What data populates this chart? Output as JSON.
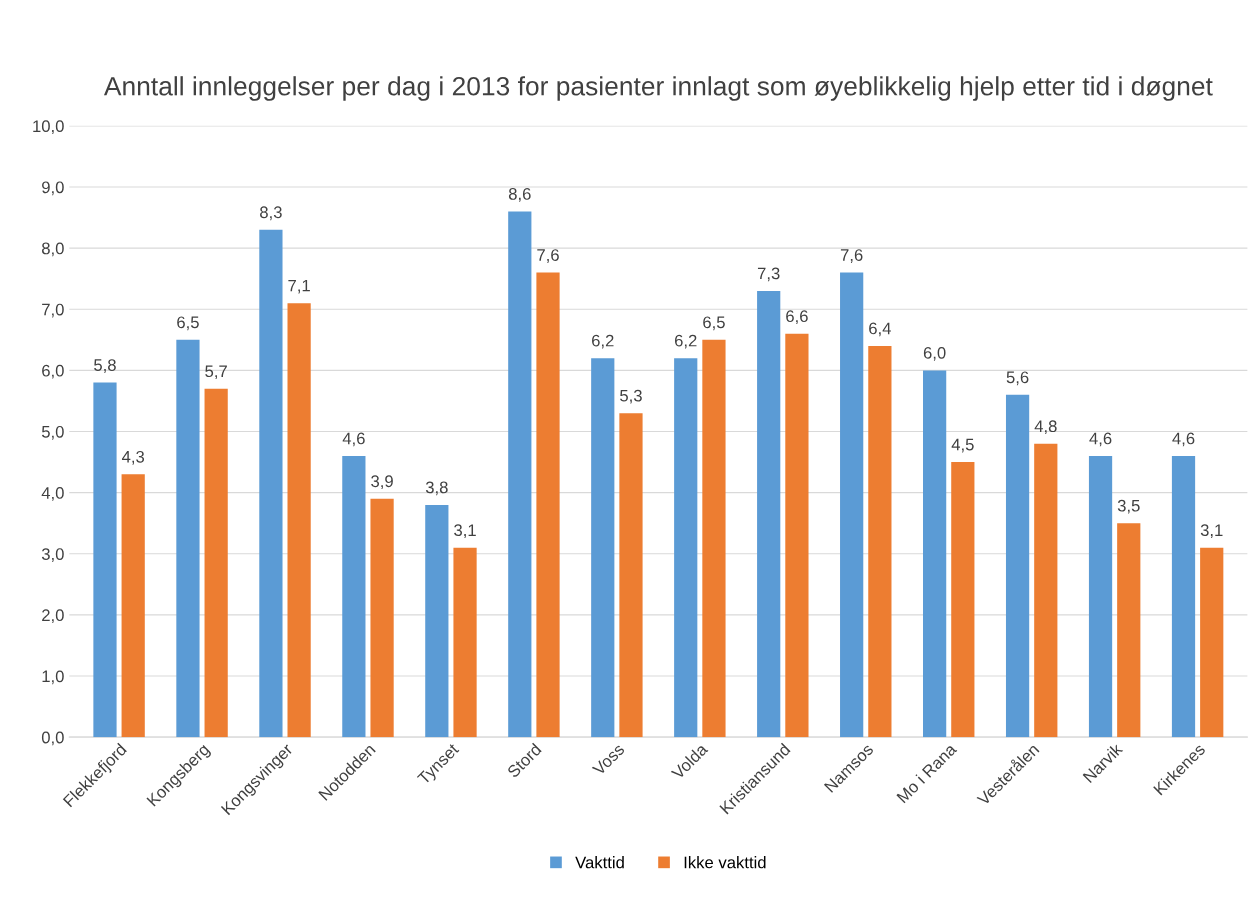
{
  "chart_data": {
    "type": "bar",
    "title": "Anntall innleggelser per dag i 2013 for pasienter innlagt som øyeblikkelig hjelp etter tid i døgnet",
    "categories": [
      "Flekkefjord",
      "Kongsberg",
      "Kongsvinger",
      "Notodden",
      "Tynset",
      "Stord",
      "Voss",
      "Volda",
      "Kristiansund",
      "Namsos",
      "Mo i Rana",
      "Vesterålen",
      "Narvik",
      "Kirkenes"
    ],
    "series": [
      {
        "name": "Vakttid",
        "color": "#5b9bd5",
        "values": [
          5.8,
          6.5,
          8.3,
          4.6,
          3.8,
          8.6,
          6.2,
          6.2,
          7.3,
          7.6,
          6.0,
          5.6,
          4.6,
          4.6
        ],
        "value_labels": [
          "5,8",
          "6,5",
          "8,3",
          "4,6",
          "3,8",
          "8,6",
          "6,2",
          "6,2",
          "7,3",
          "7,6",
          "6,0",
          "5,6",
          "4,6",
          "4,6"
        ]
      },
      {
        "name": "Ikke vakttid",
        "color": "#ed7d31",
        "values": [
          4.3,
          5.7,
          7.1,
          3.9,
          3.1,
          7.6,
          5.3,
          6.5,
          6.6,
          6.4,
          4.5,
          4.8,
          3.5,
          3.1
        ],
        "value_labels": [
          "4,3",
          "5,7",
          "7,1",
          "3,9",
          "3,1",
          "7,6",
          "5,3",
          "6,5",
          "6,6",
          "6,4",
          "4,5",
          "4,8",
          "3,5",
          "3,1"
        ]
      }
    ],
    "ylim": [
      0,
      10
    ],
    "yticks": [
      {
        "value": 0,
        "label": "0,0"
      },
      {
        "value": 1,
        "label": "1,0"
      },
      {
        "value": 2,
        "label": "2,0"
      },
      {
        "value": 3,
        "label": "3,0"
      },
      {
        "value": 4,
        "label": "4,0"
      },
      {
        "value": 5,
        "label": "5,0"
      },
      {
        "value": 6,
        "label": "6,0"
      },
      {
        "value": 7,
        "label": "7,0"
      },
      {
        "value": 8,
        "label": "8,0"
      },
      {
        "value": 9,
        "label": "9,0"
      },
      {
        "value": 10,
        "label": "10,0"
      }
    ],
    "grid": "y",
    "legend": "bottom"
  }
}
